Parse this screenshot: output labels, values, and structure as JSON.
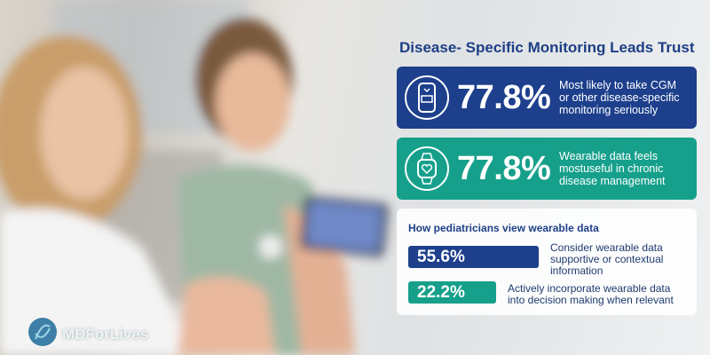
{
  "title": "Disease- Specific Monitoring Leads Trust",
  "cards": [
    {
      "value": "77.8%",
      "lines": [
        "Most likely to take CGM",
        "or other disease-specific",
        "monitoring seriously"
      ]
    },
    {
      "value": "77.8%",
      "lines": [
        "Wearable data feels",
        "mostuseful in chronic",
        "disease management"
      ]
    }
  ],
  "panel": {
    "title": "How pediatricians view wearable data",
    "rows": [
      {
        "value": "55.6%",
        "lines": [
          "Consider wearable data",
          "supportive or contextual",
          "information"
        ]
      },
      {
        "value": "22.2%",
        "lines": [
          "Actively incorporate wearable data",
          "into decision making when relevant"
        ]
      }
    ]
  },
  "logo": "MDForLives"
}
